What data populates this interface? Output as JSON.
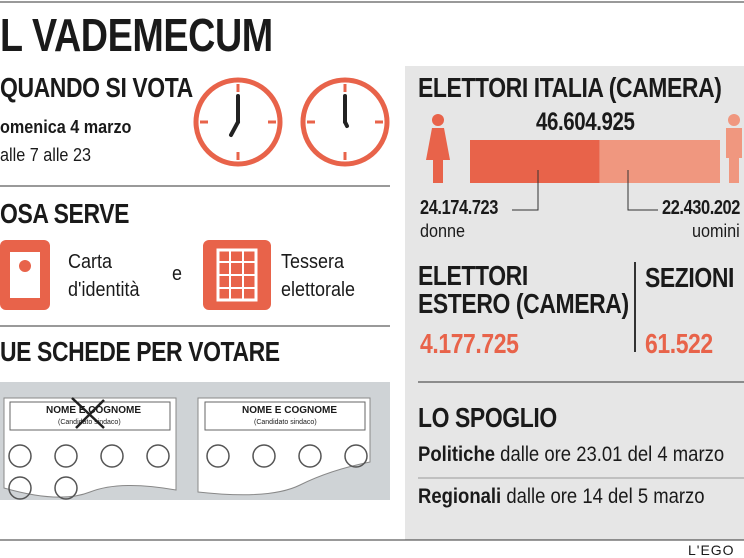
{
  "header": {
    "title": "L VADEMECUM"
  },
  "when": {
    "title": "QUANDO SI VOTA",
    "date": "omenica 4 marzo",
    "hours": "alle 7 alle 23"
  },
  "needed": {
    "title": "OSA SERVE",
    "card_line1": "Carta",
    "card_line2": "d'identità",
    "and": "e",
    "tessera_line1": "Tessera",
    "tessera_line2": "elettorale"
  },
  "ballots": {
    "title": "UE SCHEDE PER VOTARE",
    "cards": [
      {
        "name": "NOME E COGNOME",
        "sub": "(Candidato sindaco)"
      },
      {
        "name": "NOME E COGNOME",
        "sub": "(Candidato sindaco)"
      }
    ]
  },
  "italia": {
    "title": "ELETTORI ITALIA (CAMERA)",
    "total": "46.604.925",
    "women": "24.174.723",
    "women_label": "donne",
    "men": "22.430.202",
    "men_label": "uomini"
  },
  "estero": {
    "title_line1": "ELETTORI",
    "title_line2": "ESTERO (CAMERA)",
    "value": "4.177.725"
  },
  "sezioni": {
    "title": "SEZIONI",
    "value": "61.522"
  },
  "spoglio": {
    "title": "LO SPOGLIO",
    "rows": [
      {
        "label": "Politiche",
        "text": "dalle ore 23.01 del 4 marzo"
      },
      {
        "label": "Regionali",
        "text": "dalle ore 14 del 5 marzo"
      }
    ]
  },
  "footer": {
    "brand": "L'EGO"
  }
}
